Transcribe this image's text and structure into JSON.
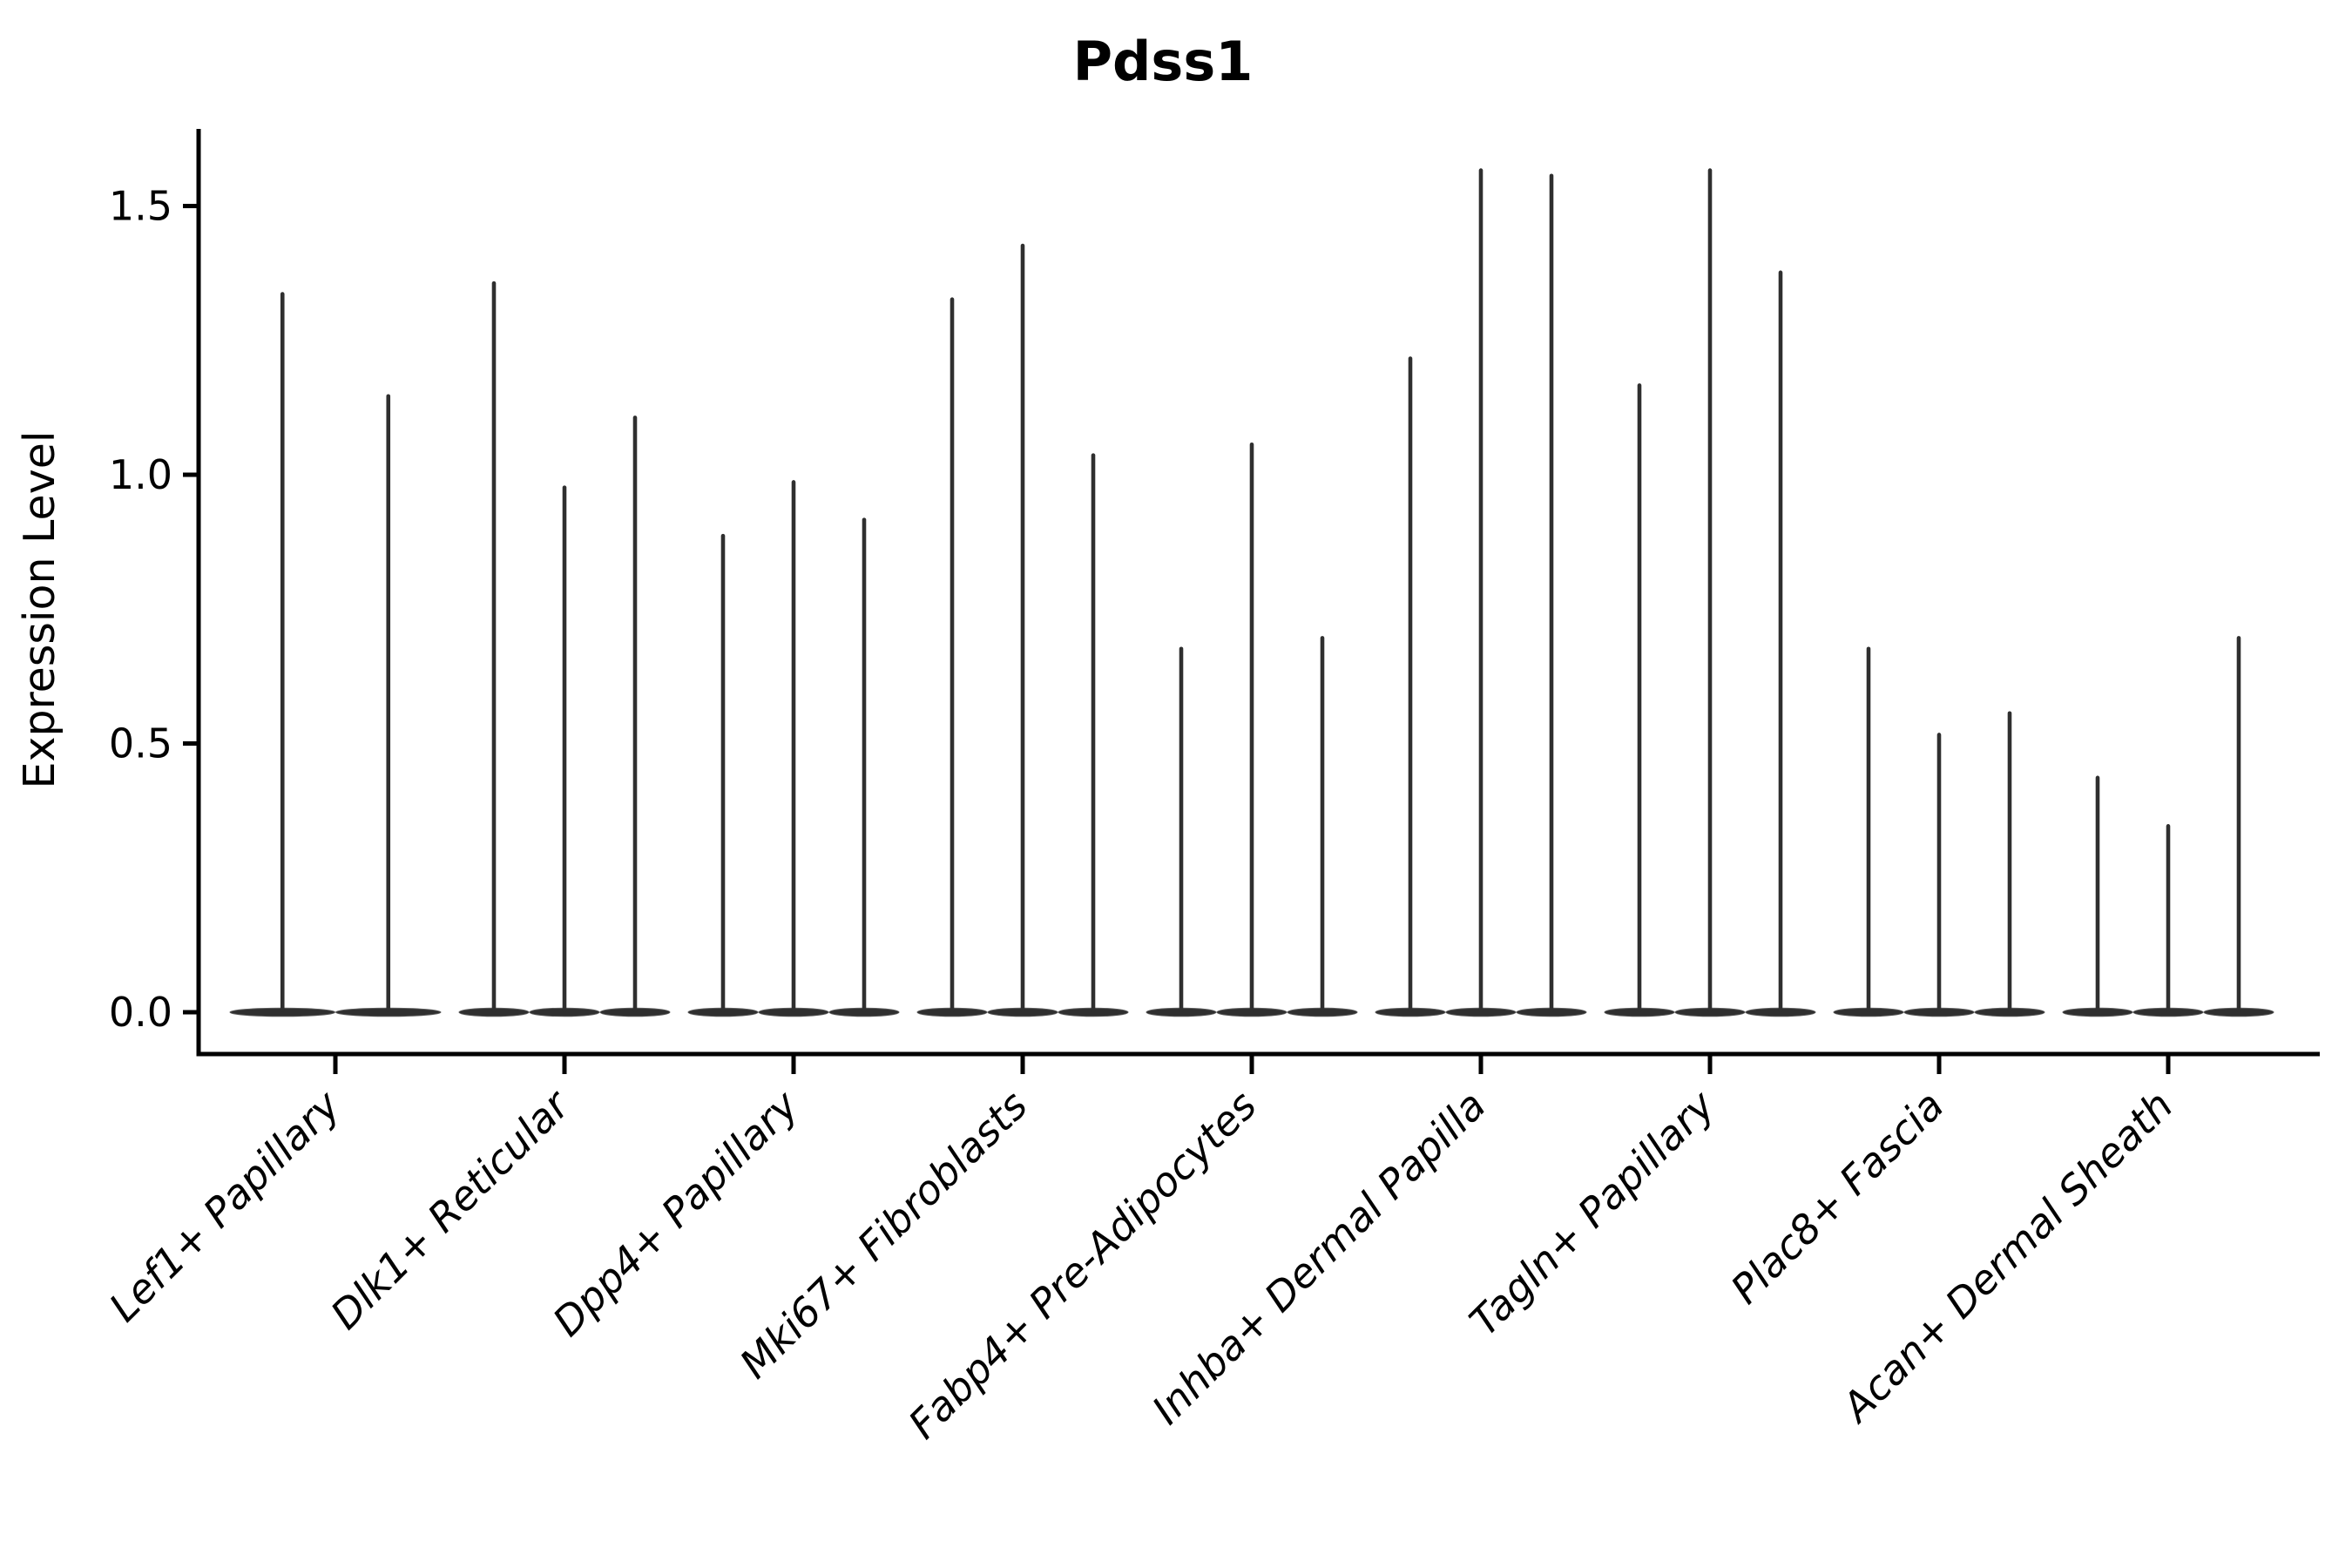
{
  "colors": {
    "ink": "#2f2f2f",
    "axis": "#000000",
    "text": "#000000",
    "background": "#ffffff"
  },
  "chart_data": {
    "type": "violin",
    "title": "Pdss1",
    "xlabel": "",
    "ylabel": "Expression Level",
    "grid": false,
    "legend": "none",
    "yticks": [
      0.0,
      0.5,
      1.0,
      1.5
    ],
    "ytick_labels": [
      "0.0",
      "0.5",
      "1.0",
      "1.5"
    ],
    "ylim": [
      -0.08,
      1.64
    ],
    "categories": [
      "Lef1+ Papillary",
      "Dlk1+ Reticular",
      "Dpp4+ Papillary",
      "Mki67+ Fibroblasts",
      "Fabp4+ Pre-Adipocytes",
      "Inhba+ Dermal Papilla",
      "Tagln+ Papillary",
      "Plac8+ Fascia",
      "Acan+ Dermal Sheath"
    ],
    "series": [
      {
        "category": "Lef1+ Papillary",
        "violin_max_values": [
          1.34,
          1.15
        ]
      },
      {
        "category": "Dlk1+ Reticular",
        "violin_max_values": [
          1.36,
          0.98,
          1.11
        ]
      },
      {
        "category": "Dpp4+ Papillary",
        "violin_max_values": [
          0.89,
          0.99,
          0.92
        ]
      },
      {
        "category": "Mki67+ Fibroblasts",
        "violin_max_values": [
          1.33,
          1.43,
          1.04
        ]
      },
      {
        "category": "Fabp4+ Pre-Adipocytes",
        "violin_max_values": [
          0.68,
          1.06,
          0.7
        ]
      },
      {
        "category": "Inhba+ Dermal Papilla",
        "violin_max_values": [
          1.22,
          1.57,
          1.56
        ]
      },
      {
        "category": "Tagln+ Papillary",
        "violin_max_values": [
          1.17,
          1.57,
          1.38
        ]
      },
      {
        "category": "Plac8+ Fascia",
        "violin_max_values": [
          0.68,
          0.52,
          0.56
        ]
      },
      {
        "category": "Acan+ Dermal Sheath",
        "violin_max_values": [
          0.44,
          0.35,
          0.7
        ]
      }
    ]
  }
}
